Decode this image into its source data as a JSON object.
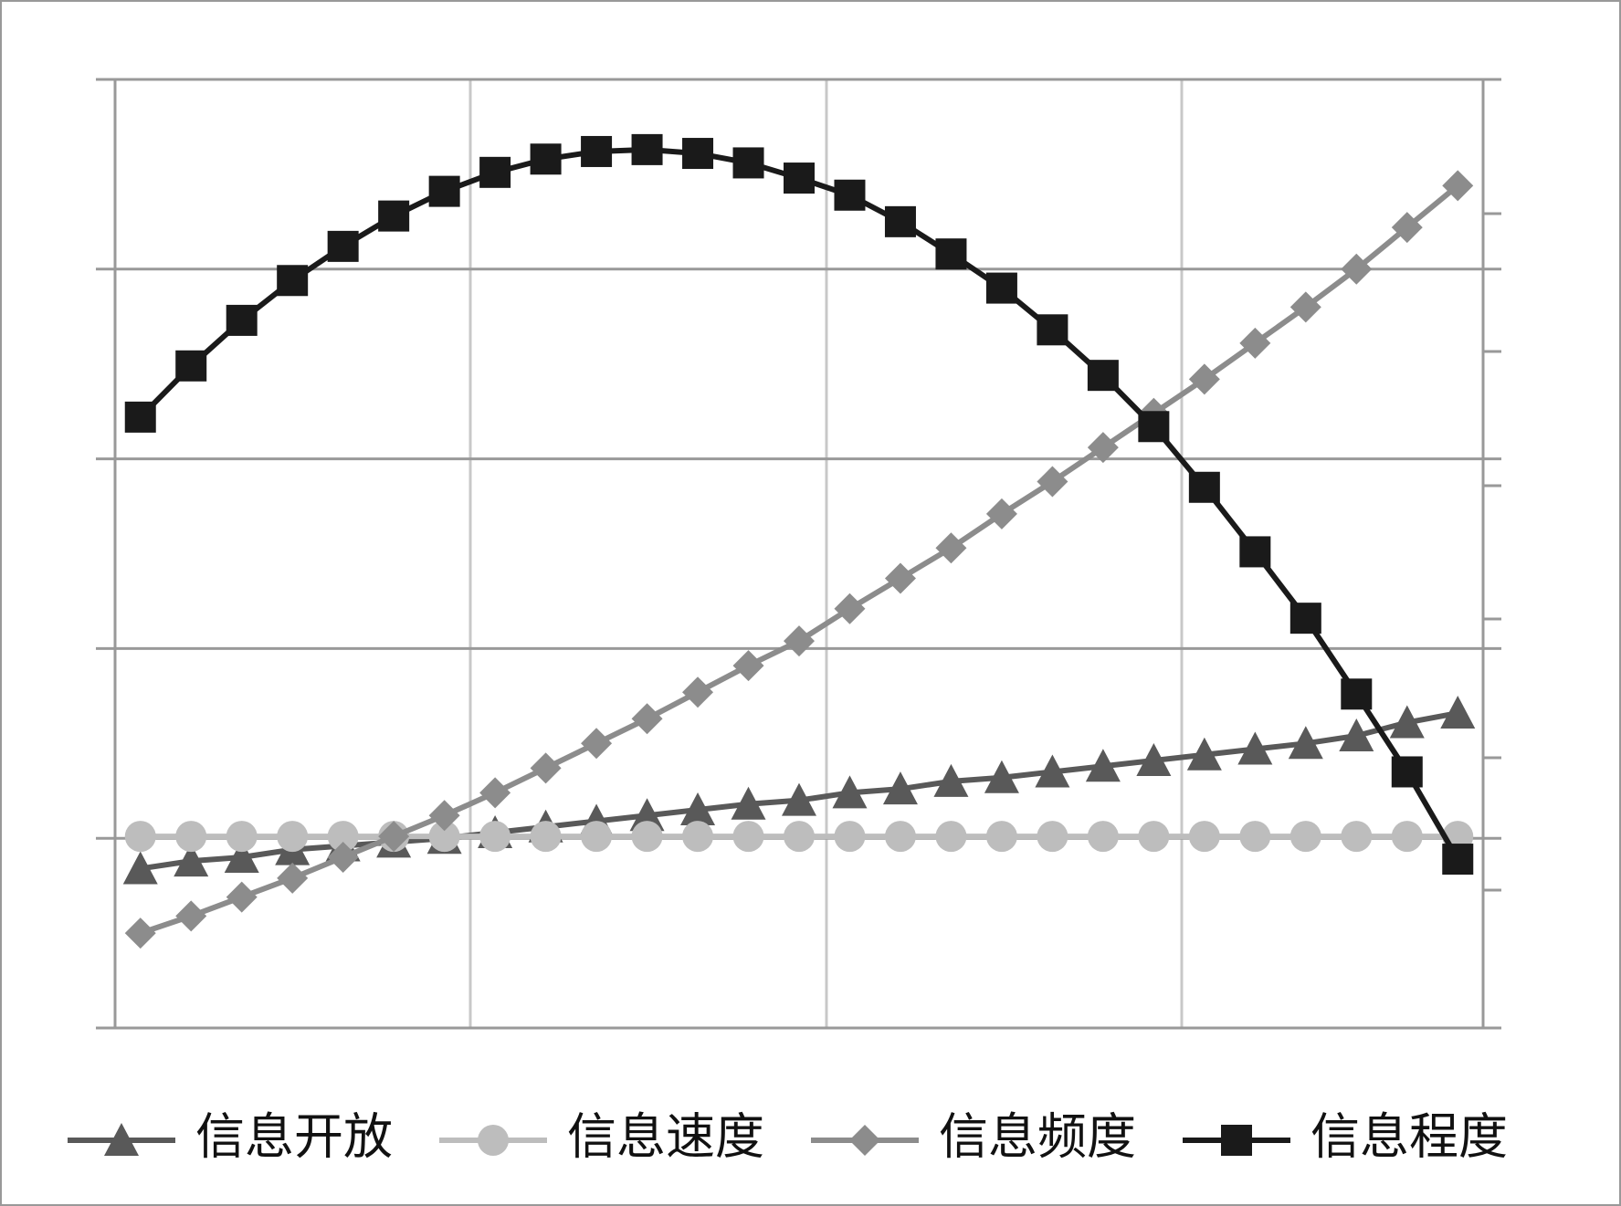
{
  "chart_data": {
    "type": "line",
    "categories": [
      null,
      null,
      null,
      null,
      null,
      null,
      null,
      null,
      null,
      null,
      null,
      null,
      null,
      null,
      null,
      null,
      null,
      null,
      null,
      null,
      null,
      null,
      null,
      null,
      null,
      null,
      null
    ],
    "ylim": [
      0,
      5
    ],
    "yticks": [
      0,
      1,
      2,
      3,
      4,
      5
    ],
    "grid": true,
    "series": [
      {
        "name": "信息开放",
        "color": "#595959",
        "marker": "triangle",
        "values": [
          0.84,
          0.88,
          0.9,
          0.94,
          0.96,
          0.98,
          1.0,
          1.03,
          1.06,
          1.09,
          1.12,
          1.15,
          1.18,
          1.2,
          1.24,
          1.26,
          1.3,
          1.32,
          1.35,
          1.38,
          1.41,
          1.44,
          1.47,
          1.5,
          1.54,
          1.61,
          1.66
        ]
      },
      {
        "name": "信息速度",
        "color": "#bdbdbd",
        "marker": "circle",
        "values": [
          1.01,
          1.01,
          1.01,
          1.01,
          1.01,
          1.01,
          1.01,
          1.01,
          1.01,
          1.01,
          1.01,
          1.01,
          1.01,
          1.01,
          1.01,
          1.01,
          1.01,
          1.01,
          1.01,
          1.01,
          1.01,
          1.01,
          1.01,
          1.01,
          1.01,
          1.01,
          1.01
        ]
      },
      {
        "name": "信息频度",
        "color": "#8c8c8c",
        "marker": "diamond",
        "values": [
          0.5,
          0.59,
          0.69,
          0.79,
          0.9,
          1.01,
          1.12,
          1.24,
          1.37,
          1.5,
          1.63,
          1.77,
          1.91,
          2.04,
          2.21,
          2.37,
          2.53,
          2.71,
          2.88,
          3.06,
          3.24,
          3.42,
          3.61,
          3.8,
          4.0,
          4.22,
          4.44
        ]
      },
      {
        "name": "信息程度",
        "color": "#1a1a1a",
        "marker": "square",
        "values": [
          3.22,
          3.49,
          3.73,
          3.94,
          4.12,
          4.28,
          4.41,
          4.51,
          4.58,
          4.62,
          4.63,
          4.61,
          4.56,
          4.48,
          4.39,
          4.25,
          4.08,
          3.9,
          3.68,
          3.44,
          3.17,
          2.85,
          2.51,
          2.16,
          1.76,
          1.35,
          0.89
        ]
      }
    ]
  }
}
